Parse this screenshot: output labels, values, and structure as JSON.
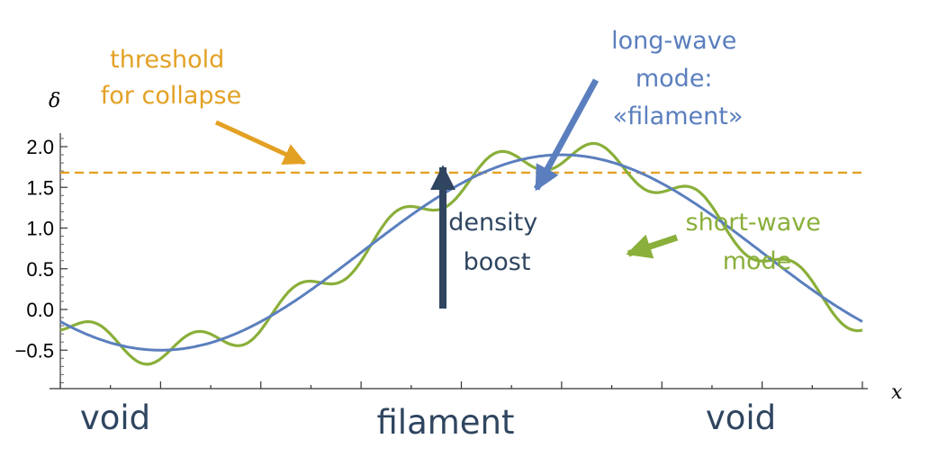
{
  "chart_data": {
    "type": "line",
    "ylabel": "δ",
    "xlabel": "x",
    "ylim": [
      -0.95,
      2.25
    ],
    "xlim": [
      0,
      16
    ],
    "yticks": [
      -0.5,
      0.0,
      0.5,
      1.0,
      1.5,
      2.0
    ],
    "ytick_labels": [
      "−0.5",
      "0.0",
      "0.5",
      "1.0",
      "1.5",
      "2.0"
    ],
    "grid": false,
    "threshold": {
      "value": 1.68,
      "style": "dashed",
      "color": "#e3a124"
    },
    "series": [
      {
        "kind": "long-wave",
        "color": "#5b7fbe",
        "amplitude": 1.2,
        "offset": 0.7,
        "period": 16
      },
      {
        "kind": "short-wave",
        "color": "#8aaf3a",
        "amplitude": 0.18,
        "period": 2
      }
    ],
    "annotations": {
      "threshold_label": [
        "threshold",
        "for collapse"
      ],
      "long_wave_label": [
        "long-wave",
        "mode:",
        "«filament»"
      ],
      "short_wave_label": [
        "short-wave",
        "mode"
      ],
      "boost_label": [
        "density",
        "boost"
      ]
    },
    "regions": [
      "void",
      "filament",
      "void"
    ]
  },
  "colors": {
    "threshold": "#e3a124",
    "long_wave": "#5b7fbe",
    "short_wave": "#8aaf3a",
    "boost": "#2f4560",
    "region_text": "#2f4560"
  }
}
